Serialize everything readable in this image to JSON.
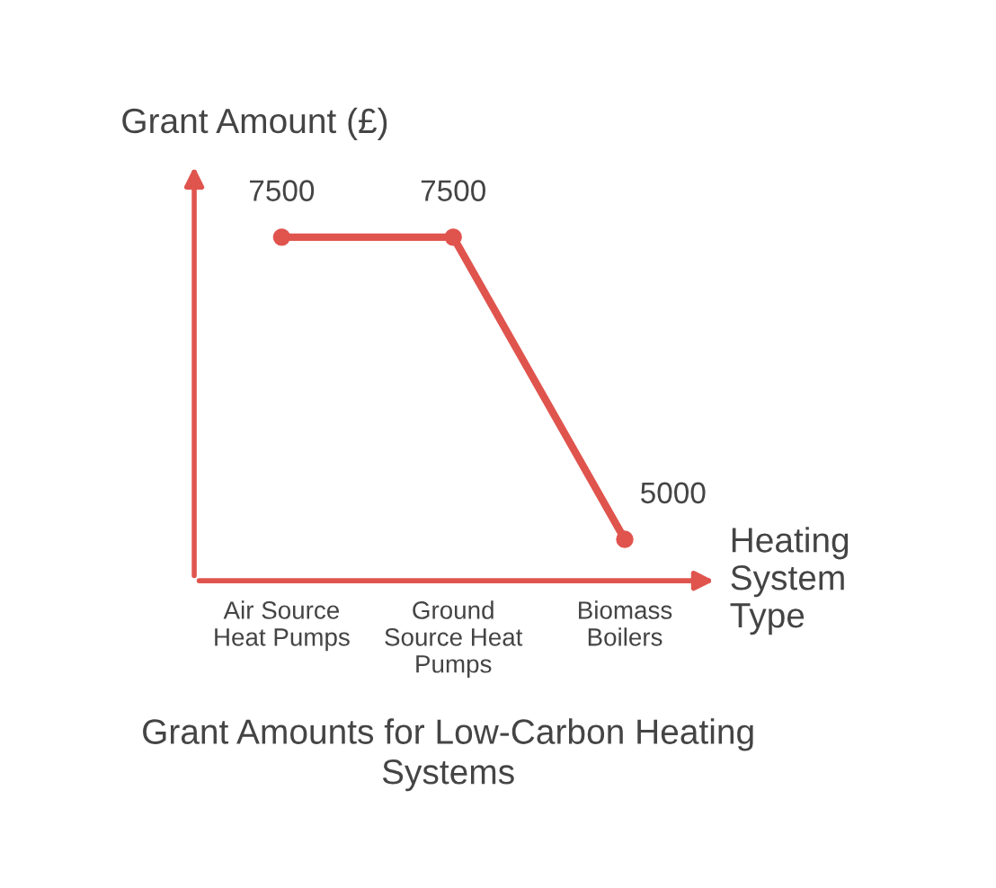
{
  "chart_data": {
    "type": "line",
    "title": "Grant Amounts for Low-Carbon Heating Systems",
    "xlabel": "Heating System Type",
    "ylabel": "Grant Amount (£)",
    "categories": [
      "Air Source Heat Pumps",
      "Ground Source Heat Pumps",
      "Biomass Boilers"
    ],
    "series": [
      {
        "color": "#e0544e",
        "values": [
          7500,
          7500,
          5000
        ]
      }
    ],
    "data_labels": true,
    "marker": "circle",
    "line_style": "solid",
    "grid": false,
    "legend": false,
    "tick_labels": "x"
  }
}
